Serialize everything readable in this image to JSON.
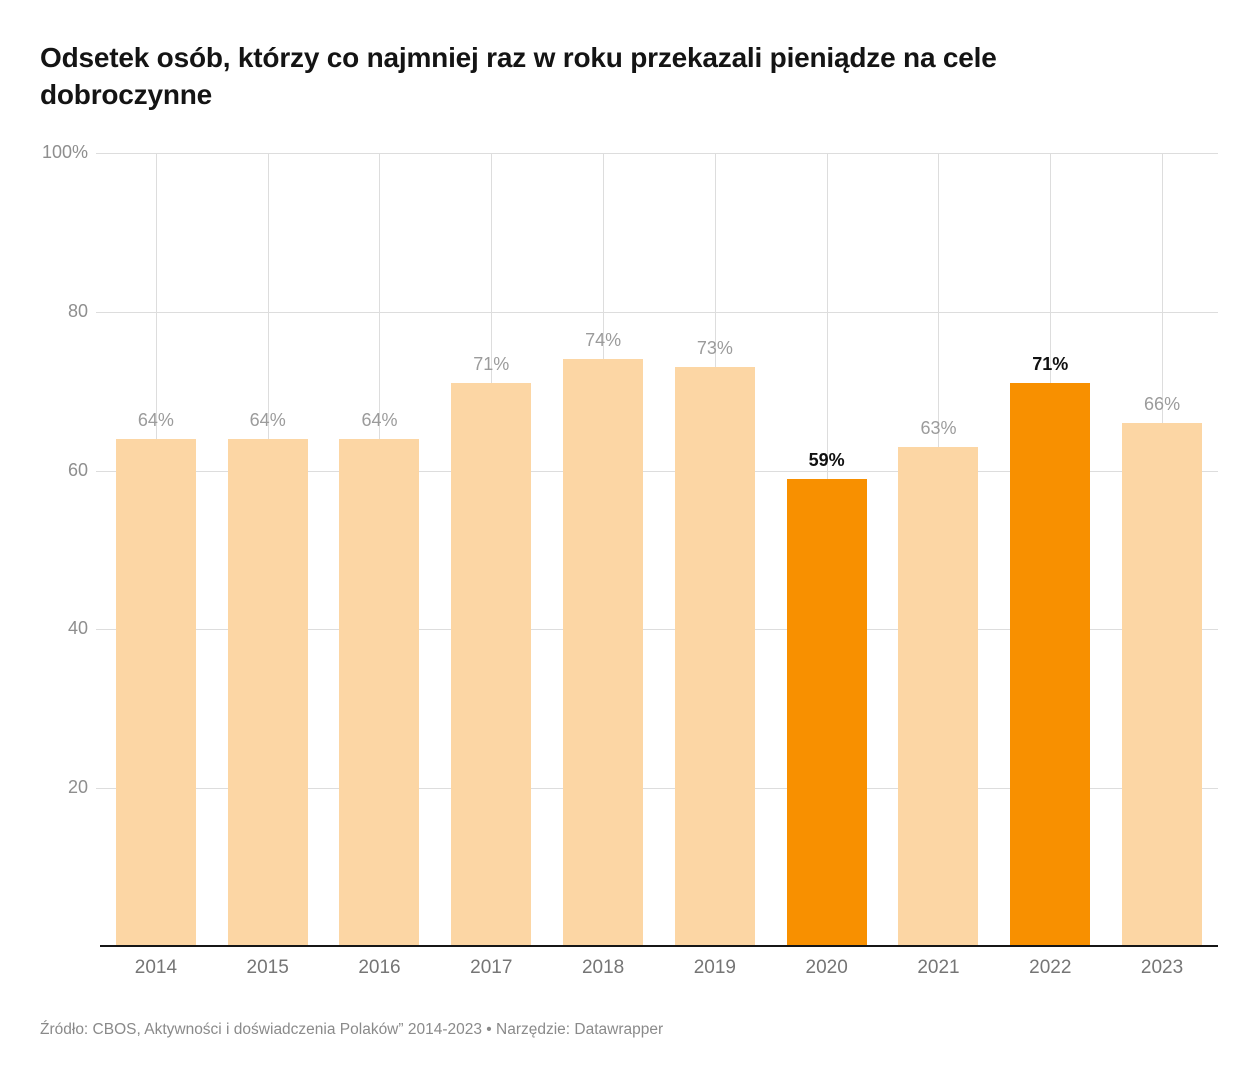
{
  "title": "Odsetek osób, którzy co najmniej raz w roku przekazali pieniądze na cele dobroczynne",
  "source_note": "Źródło: CBOS, Aktywności i doświadczenia Polaków” 2014-2023 • Narzędzie: Datawrapper",
  "chart_data": {
    "type": "bar",
    "title": "Odsetek osób, którzy co najmniej raz w roku przekazali pieniądze na cele dobroczynne",
    "categories": [
      "2014",
      "2015",
      "2016",
      "2017",
      "2018",
      "2019",
      "2020",
      "2021",
      "2022",
      "2023"
    ],
    "values": [
      64,
      64,
      64,
      71,
      74,
      73,
      59,
      63,
      71,
      66
    ],
    "value_labels": [
      "64%",
      "64%",
      "64%",
      "71%",
      "74%",
      "73%",
      "59%",
      "63%",
      "71%",
      "66%"
    ],
    "highlighted": [
      "2020",
      "2022"
    ],
    "xlabel": "",
    "ylabel": "",
    "ylim": [
      0,
      100
    ],
    "yticks": [
      100,
      80,
      60,
      40,
      20
    ],
    "ytick_labels": [
      "100%",
      "80",
      "60",
      "40",
      "20"
    ],
    "grid": true,
    "legend": "none",
    "colors": {
      "bar_default": "#FCD6A4",
      "bar_highlight": "#F89000",
      "label_default": "#9B9B9B",
      "label_highlight": "#111111",
      "gridline": "#DDDDDD",
      "axis_line": "#161616"
    }
  }
}
